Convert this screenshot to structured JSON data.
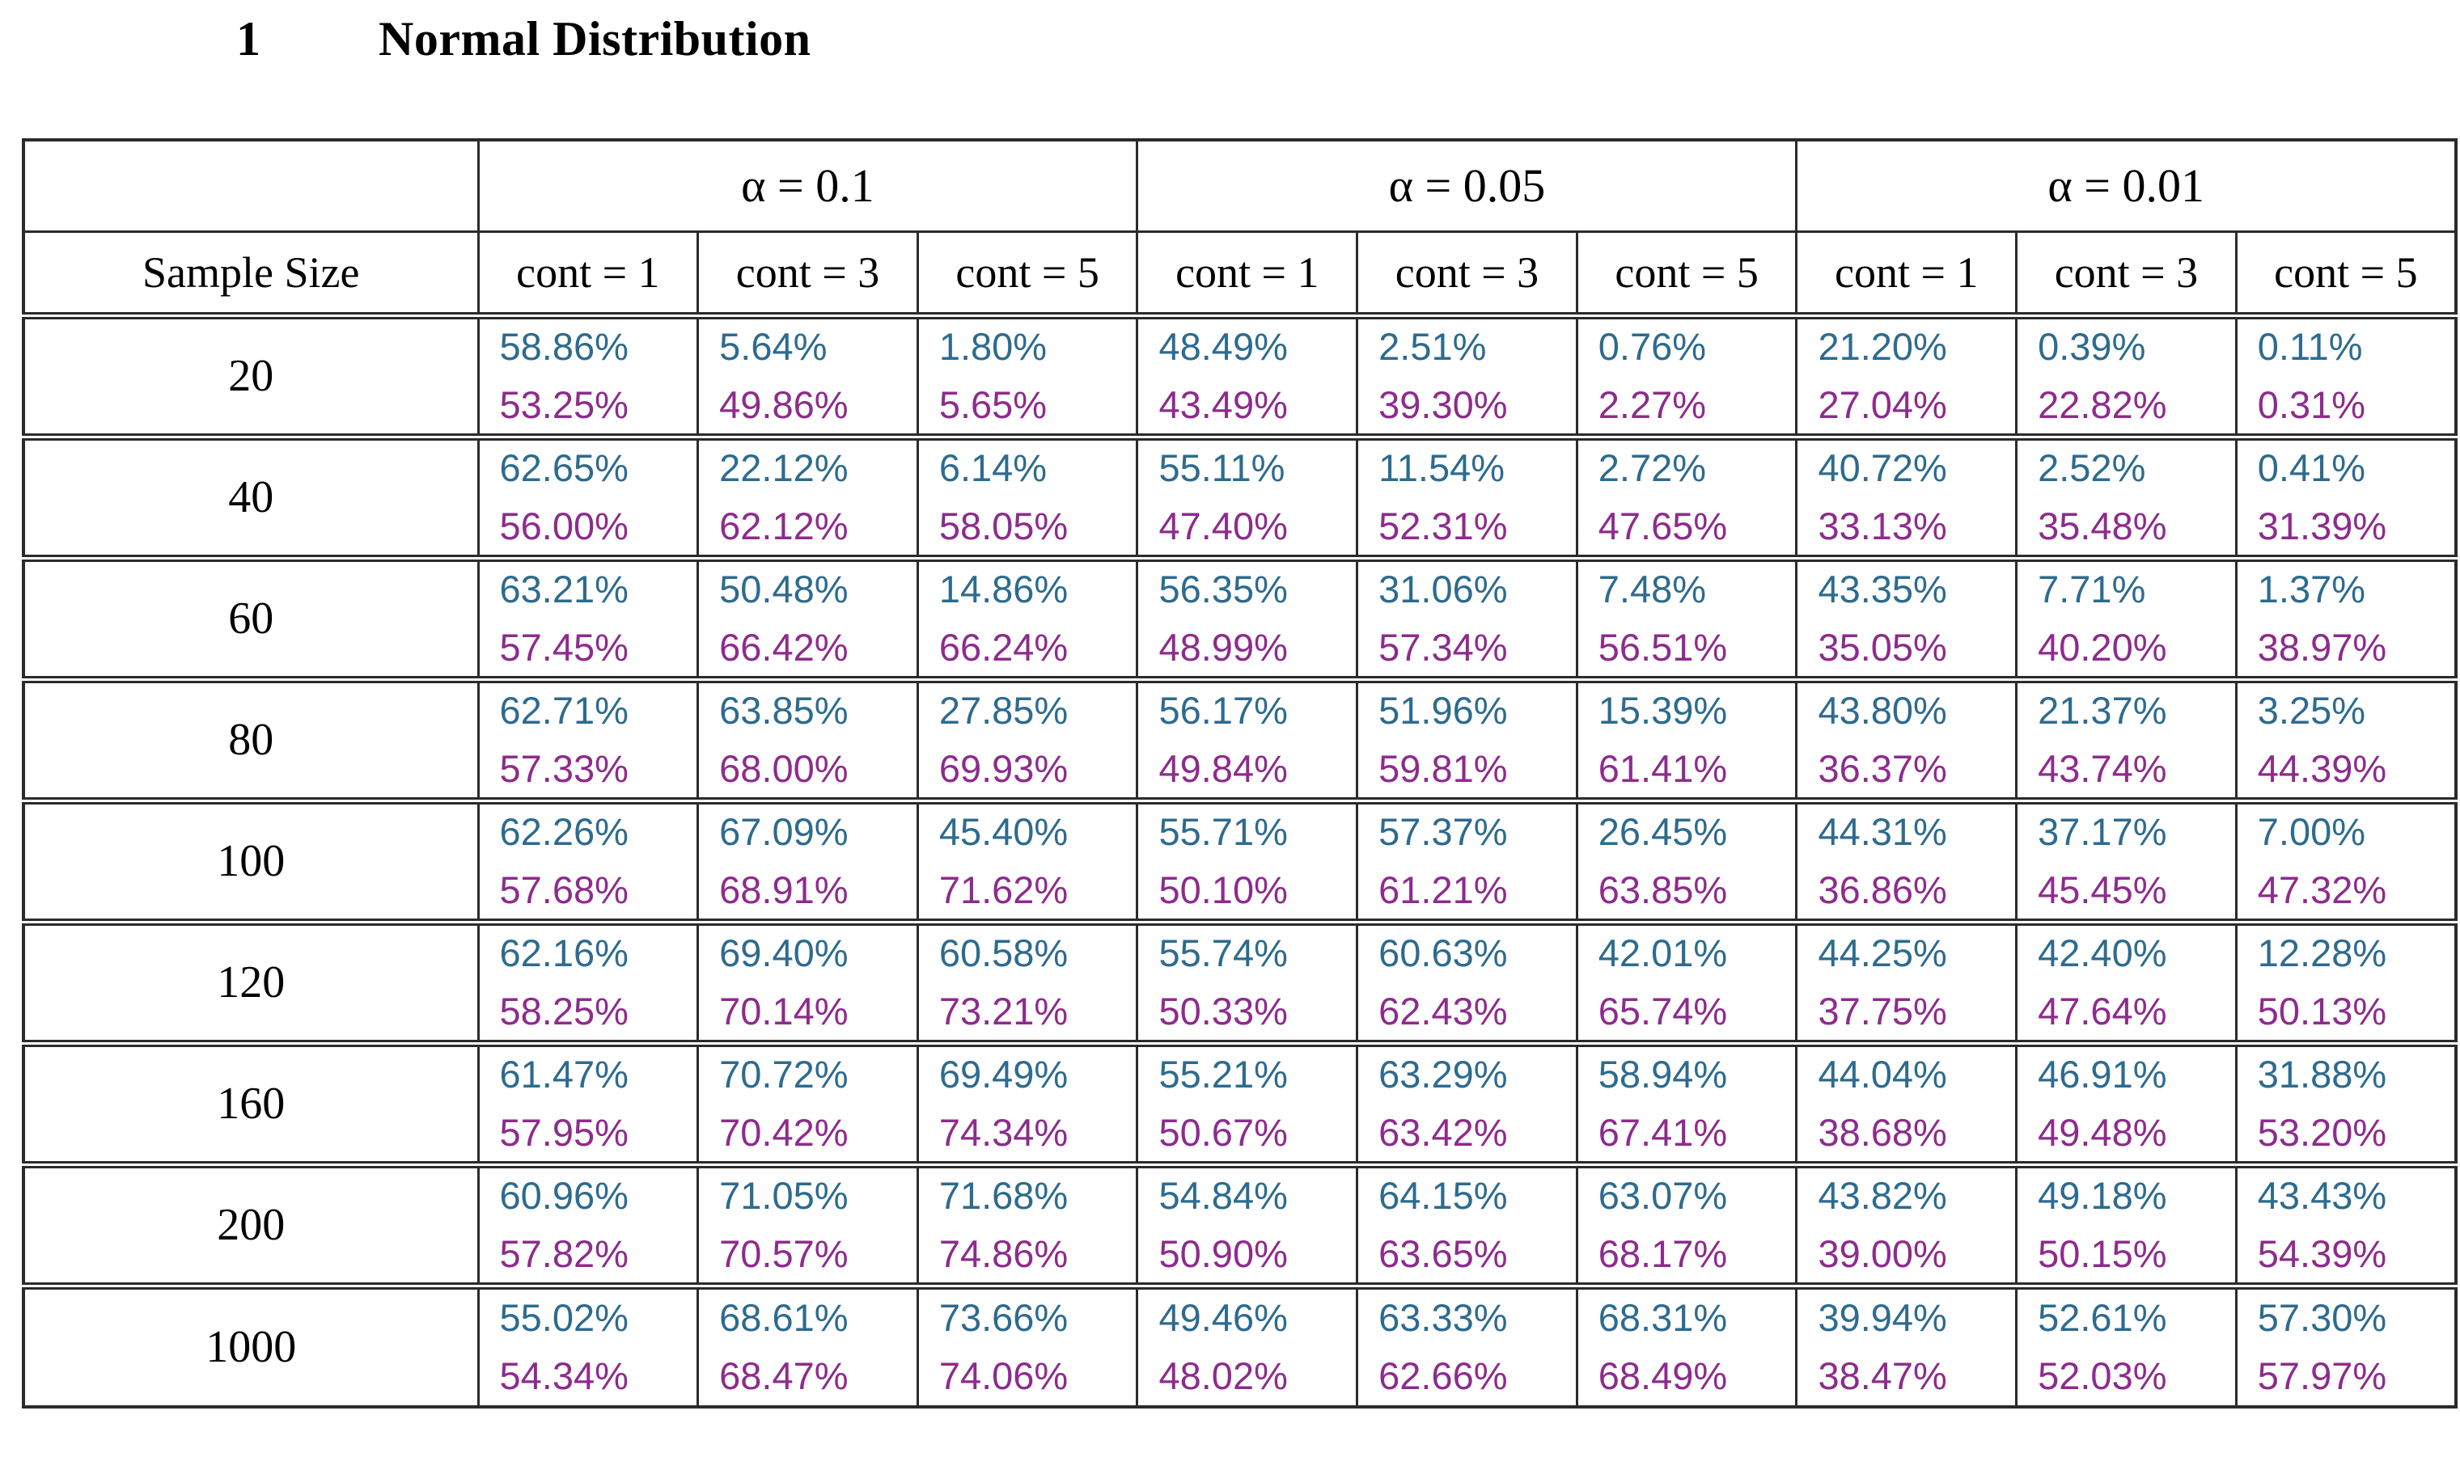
{
  "heading": {
    "number": "1",
    "title": "Normal Distribution"
  },
  "colors": {
    "top_value": "#2d6b8f",
    "bottom_value": "#8e2b8d",
    "border": "#2b2b2b"
  },
  "table": {
    "corner_label": "",
    "row_header": "Sample Size",
    "groups": [
      {
        "label": "α = 0.1"
      },
      {
        "label": "α = 0.05"
      },
      {
        "label": "α = 0.01"
      }
    ],
    "cont_headers": [
      "cont = 1",
      "cont = 3",
      "cont = 5"
    ],
    "rows": [
      {
        "sample_size": "20",
        "cells": [
          {
            "top": "58.86%",
            "bottom": "53.25%"
          },
          {
            "top": "5.64%",
            "bottom": "49.86%"
          },
          {
            "top": "1.80%",
            "bottom": "5.65%"
          },
          {
            "top": "48.49%",
            "bottom": "43.49%"
          },
          {
            "top": "2.51%",
            "bottom": "39.30%"
          },
          {
            "top": "0.76%",
            "bottom": "2.27%"
          },
          {
            "top": "21.20%",
            "bottom": "27.04%"
          },
          {
            "top": "0.39%",
            "bottom": "22.82%"
          },
          {
            "top": "0.11%",
            "bottom": "0.31%"
          }
        ]
      },
      {
        "sample_size": "40",
        "cells": [
          {
            "top": "62.65%",
            "bottom": "56.00%"
          },
          {
            "top": "22.12%",
            "bottom": "62.12%"
          },
          {
            "top": "6.14%",
            "bottom": "58.05%"
          },
          {
            "top": "55.11%",
            "bottom": "47.40%"
          },
          {
            "top": "11.54%",
            "bottom": "52.31%"
          },
          {
            "top": "2.72%",
            "bottom": "47.65%"
          },
          {
            "top": "40.72%",
            "bottom": "33.13%"
          },
          {
            "top": "2.52%",
            "bottom": "35.48%"
          },
          {
            "top": "0.41%",
            "bottom": "31.39%"
          }
        ]
      },
      {
        "sample_size": "60",
        "cells": [
          {
            "top": "63.21%",
            "bottom": "57.45%"
          },
          {
            "top": "50.48%",
            "bottom": "66.42%"
          },
          {
            "top": "14.86%",
            "bottom": "66.24%"
          },
          {
            "top": "56.35%",
            "bottom": "48.99%"
          },
          {
            "top": "31.06%",
            "bottom": "57.34%"
          },
          {
            "top": "7.48%",
            "bottom": "56.51%"
          },
          {
            "top": "43.35%",
            "bottom": "35.05%"
          },
          {
            "top": "7.71%",
            "bottom": "40.20%"
          },
          {
            "top": "1.37%",
            "bottom": "38.97%"
          }
        ]
      },
      {
        "sample_size": "80",
        "cells": [
          {
            "top": "62.71%",
            "bottom": "57.33%"
          },
          {
            "top": "63.85%",
            "bottom": "68.00%"
          },
          {
            "top": "27.85%",
            "bottom": "69.93%"
          },
          {
            "top": "56.17%",
            "bottom": "49.84%"
          },
          {
            "top": "51.96%",
            "bottom": "59.81%"
          },
          {
            "top": "15.39%",
            "bottom": "61.41%"
          },
          {
            "top": "43.80%",
            "bottom": "36.37%"
          },
          {
            "top": "21.37%",
            "bottom": "43.74%"
          },
          {
            "top": "3.25%",
            "bottom": "44.39%"
          }
        ]
      },
      {
        "sample_size": "100",
        "cells": [
          {
            "top": "62.26%",
            "bottom": "57.68%"
          },
          {
            "top": "67.09%",
            "bottom": "68.91%"
          },
          {
            "top": "45.40%",
            "bottom": "71.62%"
          },
          {
            "top": "55.71%",
            "bottom": "50.10%"
          },
          {
            "top": "57.37%",
            "bottom": "61.21%"
          },
          {
            "top": "26.45%",
            "bottom": "63.85%"
          },
          {
            "top": "44.31%",
            "bottom": "36.86%"
          },
          {
            "top": "37.17%",
            "bottom": "45.45%"
          },
          {
            "top": "7.00%",
            "bottom": "47.32%"
          }
        ]
      },
      {
        "sample_size": "120",
        "cells": [
          {
            "top": "62.16%",
            "bottom": "58.25%"
          },
          {
            "top": "69.40%",
            "bottom": "70.14%"
          },
          {
            "top": "60.58%",
            "bottom": "73.21%"
          },
          {
            "top": "55.74%",
            "bottom": "50.33%"
          },
          {
            "top": "60.63%",
            "bottom": "62.43%"
          },
          {
            "top": "42.01%",
            "bottom": "65.74%"
          },
          {
            "top": "44.25%",
            "bottom": "37.75%"
          },
          {
            "top": "42.40%",
            "bottom": "47.64%"
          },
          {
            "top": "12.28%",
            "bottom": "50.13%"
          }
        ]
      },
      {
        "sample_size": "160",
        "cells": [
          {
            "top": "61.47%",
            "bottom": "57.95%"
          },
          {
            "top": "70.72%",
            "bottom": "70.42%"
          },
          {
            "top": "69.49%",
            "bottom": "74.34%"
          },
          {
            "top": "55.21%",
            "bottom": "50.67%"
          },
          {
            "top": "63.29%",
            "bottom": "63.42%"
          },
          {
            "top": "58.94%",
            "bottom": "67.41%"
          },
          {
            "top": "44.04%",
            "bottom": "38.68%"
          },
          {
            "top": "46.91%",
            "bottom": "49.48%"
          },
          {
            "top": "31.88%",
            "bottom": "53.20%"
          }
        ]
      },
      {
        "sample_size": "200",
        "cells": [
          {
            "top": "60.96%",
            "bottom": "57.82%"
          },
          {
            "top": "71.05%",
            "bottom": "70.57%"
          },
          {
            "top": "71.68%",
            "bottom": "74.86%"
          },
          {
            "top": "54.84%",
            "bottom": "50.90%"
          },
          {
            "top": "64.15%",
            "bottom": "63.65%"
          },
          {
            "top": "63.07%",
            "bottom": "68.17%"
          },
          {
            "top": "43.82%",
            "bottom": "39.00%"
          },
          {
            "top": "49.18%",
            "bottom": "50.15%"
          },
          {
            "top": "43.43%",
            "bottom": "54.39%"
          }
        ]
      },
      {
        "sample_size": "1000",
        "cells": [
          {
            "top": "55.02%",
            "bottom": "54.34%"
          },
          {
            "top": "68.61%",
            "bottom": "68.47%"
          },
          {
            "top": "73.66%",
            "bottom": "74.06%"
          },
          {
            "top": "49.46%",
            "bottom": "48.02%"
          },
          {
            "top": "63.33%",
            "bottom": "62.66%"
          },
          {
            "top": "68.31%",
            "bottom": "68.49%"
          },
          {
            "top": "39.94%",
            "bottom": "38.47%"
          },
          {
            "top": "52.61%",
            "bottom": "52.03%"
          },
          {
            "top": "57.30%",
            "bottom": "57.97%"
          }
        ]
      }
    ]
  }
}
